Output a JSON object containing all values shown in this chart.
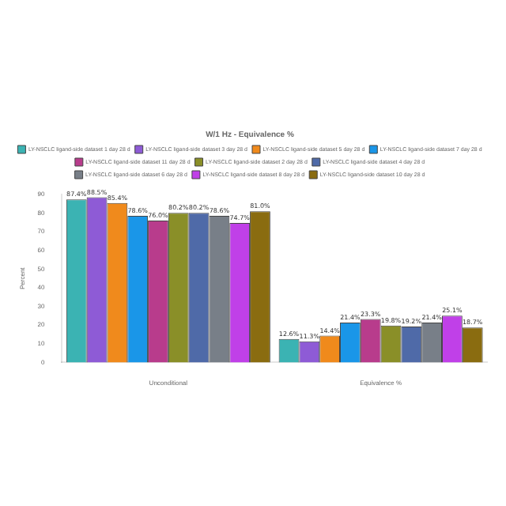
{
  "chart_data": {
    "type": "bar",
    "title": "W/1 Hz - Equivalence %",
    "ylabel": "Percent",
    "categories": [
      "Unconditional",
      "Equivalence %"
    ],
    "ylim": [
      0,
      90
    ],
    "yticks": [
      0,
      10,
      20,
      30,
      40,
      50,
      60,
      70,
      80,
      90
    ],
    "grid": false,
    "legend": "top",
    "series": [
      {
        "name": "LY-NSCLC ligand-side dataset 1 day 28 d",
        "color": "#3bb3b3",
        "values": [
          87.4,
          12.6
        ],
        "value_labels": [
          "87.4%",
          "12.6%"
        ]
      },
      {
        "name": "LY-NSCLC ligand-side dataset 3 day 28 d",
        "color": "#8e5bd6",
        "values": [
          88.5,
          11.3
        ],
        "value_labels": [
          "88.5%",
          "11.3%"
        ]
      },
      {
        "name": "LY-NSCLC ligand-side dataset 5 day 28 d",
        "color": "#f08a1c",
        "values": [
          85.4,
          14.4
        ],
        "value_labels": [
          "85.4%",
          "14.4%"
        ]
      },
      {
        "name": "LY-NSCLC ligand-side dataset 7 day 28 d",
        "color": "#1a96e8",
        "values": [
          78.6,
          21.4
        ],
        "value_labels": [
          "78.6%",
          "21.4%"
        ]
      },
      {
        "name": "LY-NSCLC ligand-side dataset 11 day 28 d",
        "color": "#b83c8c",
        "values": [
          76.0,
          23.3
        ],
        "value_labels": [
          "76.0%",
          "23.3%"
        ]
      },
      {
        "name": "LY-NSCLC ligand-side dataset 2 day 28 d",
        "color": "#8a8f28",
        "values": [
          80.2,
          19.8
        ],
        "value_labels": [
          "80.2%",
          "19.8%"
        ]
      },
      {
        "name": "LY-NSCLC ligand-side dataset 4 day 28 d",
        "color": "#4f6aa8",
        "values": [
          80.2,
          19.2
        ],
        "value_labels": [
          "80.2%",
          "19.2%"
        ]
      },
      {
        "name": "LY-NSCLC ligand-side dataset 6 day 28 d",
        "color": "#787f88",
        "values": [
          78.6,
          21.4
        ],
        "value_labels": [
          "78.6%",
          "21.4%"
        ]
      },
      {
        "name": "LY-NSCLC ligand-side dataset 8 day 28 d",
        "color": "#c040e8",
        "values": [
          74.7,
          25.1
        ],
        "value_labels": [
          "74.7%",
          "25.1%"
        ]
      },
      {
        "name": "LY-NSCLC ligand-side dataset 10 day 28 d",
        "color": "#8a6c10",
        "values": [
          81.0,
          18.7
        ],
        "value_labels": [
          "81.0%",
          "18.7%"
        ]
      }
    ]
  }
}
